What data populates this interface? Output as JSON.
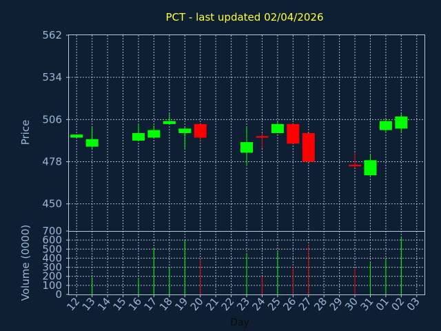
{
  "chart_data": {
    "type": "candlestick",
    "title": "PCT - last updated 02/04/2026",
    "xlabel": "Day",
    "ylabel_price": "Price",
    "ylabel_volume": "Volume (0000)",
    "x_ticks": [
      "12",
      "13",
      "14",
      "15",
      "16",
      "17",
      "18",
      "19",
      "20",
      "21",
      "22",
      "23",
      "24",
      "25",
      "26",
      "27",
      "28",
      "29",
      "30",
      "31",
      "01",
      "02",
      "03"
    ],
    "price_ticks": [
      450,
      478,
      506,
      534,
      562
    ],
    "price_ylim": [
      432,
      562
    ],
    "volume_ticks": [
      0,
      100,
      200,
      300,
      400,
      500,
      600,
      700
    ],
    "volume_ylim": [
      0,
      700
    ],
    "grid": true,
    "colors": {
      "up": "#00ff00",
      "down": "#ff0000",
      "background": "#0f1f33",
      "title": "#ffff33",
      "axis": "#9bb6d6"
    },
    "candles": [
      {
        "day": "12",
        "open": 494,
        "high": 496,
        "low": 494,
        "close": 496,
        "volume": 0
      },
      {
        "day": "13",
        "open": 488,
        "high": 501,
        "low": 487,
        "close": 493,
        "volume": 190
      },
      {
        "day": "16",
        "open": 492,
        "high": 503,
        "low": 492,
        "close": 497,
        "volume": 175
      },
      {
        "day": "17",
        "open": 494,
        "high": 502,
        "low": 494,
        "close": 499,
        "volume": 510
      },
      {
        "day": "18",
        "open": 503,
        "high": 510,
        "low": 503,
        "close": 505,
        "volume": 300
      },
      {
        "day": "19",
        "open": 497,
        "high": 501,
        "low": 487,
        "close": 500,
        "volume": 600
      },
      {
        "day": "20",
        "open": 503,
        "high": 503,
        "low": 492,
        "close": 494,
        "volume": 390
      },
      {
        "day": "23",
        "open": 484,
        "high": 501,
        "low": 475,
        "close": 491,
        "volume": 460
      },
      {
        "day": "24",
        "open": 495,
        "high": 497,
        "low": 487,
        "close": 494,
        "volume": 200
      },
      {
        "day": "25",
        "open": 497,
        "high": 505,
        "low": 497,
        "close": 503,
        "volume": 470
      },
      {
        "day": "26",
        "open": 503,
        "high": 503,
        "low": 490,
        "close": 490,
        "volume": 300
      },
      {
        "day": "27",
        "open": 497,
        "high": 497,
        "low": 478,
        "close": 478,
        "volume": 545
      },
      {
        "day": "30",
        "open": 476,
        "high": 484,
        "low": 474,
        "close": 475,
        "volume": 280
      },
      {
        "day": "31",
        "open": 469,
        "high": 483,
        "low": 468,
        "close": 479,
        "volume": 360
      },
      {
        "day": "01",
        "open": 499,
        "high": 506,
        "low": 497,
        "close": 505,
        "volume": 400
      },
      {
        "day": "02",
        "open": 500,
        "high": 510,
        "low": 497,
        "close": 508,
        "volume": 640
      }
    ]
  }
}
